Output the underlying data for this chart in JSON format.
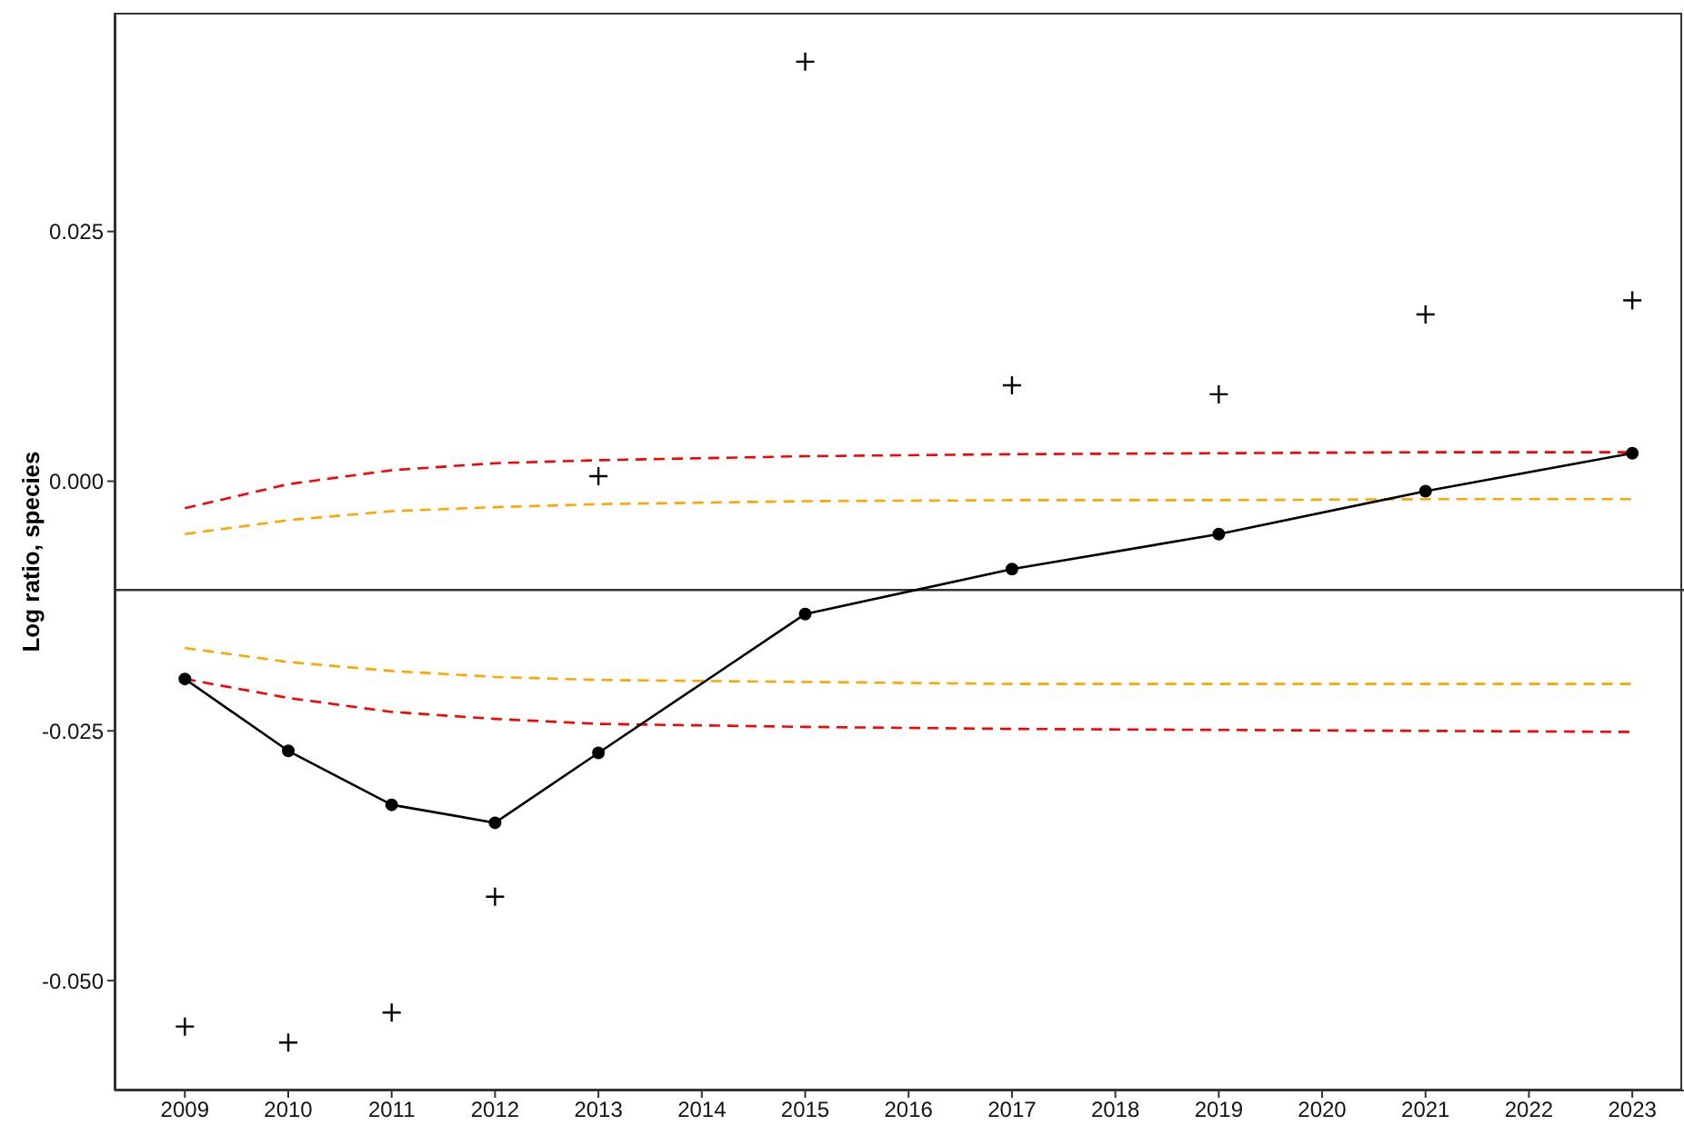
{
  "chart_data": {
    "type": "line",
    "ylabel": "Log ratio, species",
    "xlim": [
      2008.32,
      2023.5
    ],
    "xticks": [
      2009,
      2010,
      2011,
      2012,
      2013,
      2014,
      2015,
      2016,
      2017,
      2018,
      2019,
      2020,
      2021,
      2022,
      2023
    ],
    "ylim": [
      -0.061,
      0.0469
    ],
    "yticks": [
      {
        "value": -0.05,
        "label": "-0.050"
      },
      {
        "value": -0.025,
        "label": "-0.025"
      },
      {
        "value": 0,
        "label": "0.000"
      },
      {
        "value": 0.025,
        "label": "0.025"
      }
    ],
    "ref_lines": [
      {
        "axis": "y",
        "value": -0.0109,
        "color": "#333333",
        "line_style": "solid"
      }
    ],
    "series": [
      {
        "type": "line",
        "color": "#ff0000",
        "line_style": "dashed",
        "marker": "none",
        "x": [
          2009,
          2010,
          2011,
          2012,
          2013,
          2015,
          2017,
          2019,
          2021,
          2023
        ],
        "values": [
          -0.0027,
          -0.0003,
          0.0011,
          0.0018,
          0.0021,
          0.0025,
          0.0027,
          0.0028,
          0.0029,
          0.0029
        ]
      },
      {
        "type": "line",
        "color": "#ff0000",
        "line_style": "dashed",
        "marker": "none",
        "x": [
          2009,
          2010,
          2011,
          2012,
          2013,
          2015,
          2017,
          2019,
          2021,
          2023
        ],
        "values": [
          -0.0198,
          -0.0217,
          -0.0231,
          -0.0238,
          -0.0243,
          -0.0246,
          -0.0248,
          -0.0249,
          -0.025,
          -0.0251
        ]
      },
      {
        "type": "line",
        "color": "#ffa500",
        "line_style": "dashed",
        "marker": "none",
        "x": [
          2009,
          2010,
          2011,
          2012,
          2013,
          2015,
          2017,
          2019,
          2021,
          2023
        ],
        "values": [
          -0.0053,
          -0.0039,
          -0.003,
          -0.0026,
          -0.0023,
          -0.002,
          -0.0019,
          -0.0019,
          -0.0018,
          -0.0018
        ]
      },
      {
        "type": "line",
        "color": "#ffa500",
        "line_style": "dashed",
        "marker": "none",
        "x": [
          2009,
          2010,
          2011,
          2012,
          2013,
          2015,
          2017,
          2019,
          2021,
          2023
        ],
        "values": [
          -0.0167,
          -0.0181,
          -0.019,
          -0.0196,
          -0.0199,
          -0.0201,
          -0.0203,
          -0.0203,
          -0.0203,
          -0.0203
        ]
      },
      {
        "color": "#000000",
        "line_style": "solid",
        "marker": "circle",
        "x": [
          2009,
          2010,
          2011,
          2012,
          2013,
          2015,
          2017,
          2019,
          2021,
          2023
        ],
        "values": [
          -0.0198,
          -0.027,
          -0.0324,
          -0.0342,
          -0.0272,
          -0.0133,
          -0.0088,
          -0.0053,
          -0.001,
          0.0028
        ]
      },
      {
        "type": "scatter",
        "color": "#000000",
        "marker": "cross",
        "x": [
          2009,
          2010,
          2011,
          2012,
          2013,
          2015,
          2017,
          2019,
          2021,
          2023
        ],
        "values": [
          -0.0546,
          -0.0562,
          -0.0532,
          -0.0416,
          0.0005,
          0.042,
          0.0096,
          0.0087,
          0.0167,
          0.0181
        ]
      }
    ]
  }
}
